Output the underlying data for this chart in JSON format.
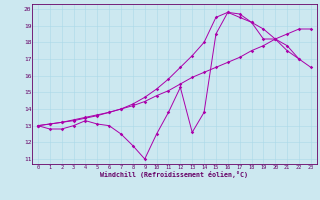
{
  "xlabel": "Windchill (Refroidissement éolien,°C)",
  "background_color": "#cce8f0",
  "line_color": "#aa00aa",
  "xmin": 0,
  "xmax": 23,
  "ymin": 11,
  "ymax": 20,
  "line1_x": [
    0,
    1,
    2,
    3,
    4,
    5,
    6,
    7,
    8,
    9,
    10,
    11,
    12,
    13,
    14,
    15,
    16,
    17,
    18,
    19,
    20,
    21,
    22
  ],
  "line1_y": [
    13.0,
    12.8,
    12.8,
    13.0,
    13.3,
    13.1,
    13.0,
    12.5,
    11.8,
    11.0,
    12.5,
    13.8,
    15.3,
    12.6,
    13.8,
    18.5,
    19.8,
    19.7,
    19.2,
    18.2,
    18.2,
    17.8,
    17.0
  ],
  "line2_x": [
    0,
    1,
    2,
    3,
    4,
    5,
    6,
    7,
    8,
    9,
    10,
    11,
    12,
    13,
    14,
    15,
    16,
    17,
    18,
    19,
    20,
    21,
    22,
    23
  ],
  "line2_y": [
    13.0,
    13.1,
    13.2,
    13.35,
    13.5,
    13.65,
    13.8,
    14.0,
    14.2,
    14.45,
    14.8,
    15.1,
    15.5,
    15.9,
    16.2,
    16.5,
    16.8,
    17.1,
    17.5,
    17.8,
    18.2,
    18.5,
    18.8,
    18.8
  ],
  "line3_x": [
    0,
    1,
    2,
    3,
    4,
    5,
    6,
    7,
    8,
    9,
    10,
    11,
    12,
    13,
    14,
    15,
    16,
    17,
    18,
    19,
    20,
    21,
    22,
    23
  ],
  "line3_y": [
    13.0,
    13.1,
    13.2,
    13.3,
    13.45,
    13.6,
    13.8,
    14.0,
    14.3,
    14.7,
    15.2,
    15.8,
    16.5,
    17.2,
    18.0,
    19.5,
    19.8,
    19.5,
    19.2,
    18.8,
    18.2,
    17.5,
    17.0,
    16.5
  ]
}
